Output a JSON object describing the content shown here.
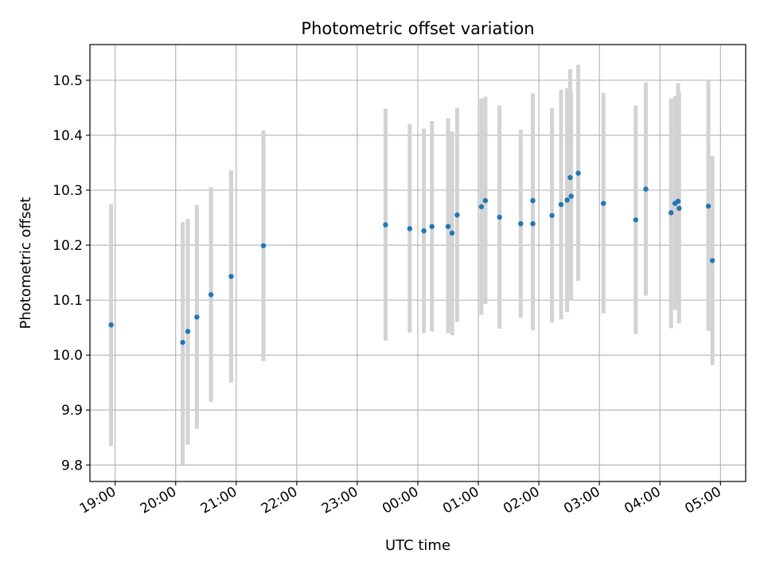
{
  "chart_data": {
    "type": "scatter",
    "title": "Photometric offset variation",
    "xlabel": "UTC time",
    "ylabel": "Photometric offset",
    "grid": true,
    "legend": "none",
    "x_axis": "time",
    "xlim": [
      "18:35",
      "05:25"
    ],
    "ylim": [
      9.77,
      10.565
    ],
    "x_ticks": [
      "19:00",
      "20:00",
      "21:00",
      "22:00",
      "23:00",
      "00:00",
      "01:00",
      "02:00",
      "03:00",
      "04:00",
      "05:00"
    ],
    "y_ticks": [
      9.8,
      9.9,
      10.0,
      10.1,
      10.2,
      10.3,
      10.4,
      10.5
    ],
    "colors": {
      "point": "#1f77b4",
      "errorbar": "#d3d3d3",
      "grid": "#b0b0b0"
    },
    "series": [
      {
        "points": [
          {
            "t": "18:56",
            "y": 10.055,
            "lo": 9.835,
            "hi": 10.275
          },
          {
            "t": "20:07",
            "y": 10.023,
            "lo": 9.8,
            "hi": 10.242
          },
          {
            "t": "20:12",
            "y": 10.043,
            "lo": 9.837,
            "hi": 10.248
          },
          {
            "t": "20:21",
            "y": 10.069,
            "lo": 9.866,
            "hi": 10.273
          },
          {
            "t": "20:35",
            "y": 10.11,
            "lo": 9.915,
            "hi": 10.305
          },
          {
            "t": "20:55",
            "y": 10.143,
            "lo": 9.95,
            "hi": 10.336
          },
          {
            "t": "21:27",
            "y": 10.199,
            "lo": 9.989,
            "hi": 10.409
          },
          {
            "t": "23:28",
            "y": 10.237,
            "lo": 10.026,
            "hi": 10.448
          },
          {
            "t": "23:52",
            "y": 10.23,
            "lo": 10.041,
            "hi": 10.421
          },
          {
            "t": "00:06",
            "y": 10.226,
            "lo": 10.04,
            "hi": 10.412
          },
          {
            "t": "00:14",
            "y": 10.234,
            "lo": 10.043,
            "hi": 10.426
          },
          {
            "t": "00:30",
            "y": 10.234,
            "lo": 10.04,
            "hi": 10.431
          },
          {
            "t": "00:34",
            "y": 10.222,
            "lo": 10.036,
            "hi": 10.407
          },
          {
            "t": "00:39",
            "y": 10.255,
            "lo": 10.06,
            "hi": 10.45
          },
          {
            "t": "01:03",
            "y": 10.27,
            "lo": 10.073,
            "hi": 10.467
          },
          {
            "t": "01:07",
            "y": 10.281,
            "lo": 10.093,
            "hi": 10.47
          },
          {
            "t": "01:21",
            "y": 10.251,
            "lo": 10.048,
            "hi": 10.454
          },
          {
            "t": "01:42",
            "y": 10.239,
            "lo": 10.068,
            "hi": 10.41
          },
          {
            "t": "01:54",
            "y": 10.239,
            "lo": 10.045,
            "hi": 10.476
          },
          {
            "t": "01:54",
            "y": 10.281,
            "lo": 10.085,
            "hi": 10.43
          },
          {
            "t": "02:13",
            "y": 10.254,
            "lo": 10.059,
            "hi": 10.449
          },
          {
            "t": "02:22",
            "y": 10.274,
            "lo": 10.065,
            "hi": 10.483
          },
          {
            "t": "02:28",
            "y": 10.282,
            "lo": 10.078,
            "hi": 10.486
          },
          {
            "t": "02:31",
            "y": 10.323,
            "lo": 10.126,
            "hi": 10.52
          },
          {
            "t": "02:32",
            "y": 10.289,
            "lo": 10.1,
            "hi": 10.478
          },
          {
            "t": "02:39",
            "y": 10.331,
            "lo": 10.135,
            "hi": 10.528
          },
          {
            "t": "03:04",
            "y": 10.276,
            "lo": 10.076,
            "hi": 10.477
          },
          {
            "t": "03:36",
            "y": 10.246,
            "lo": 10.038,
            "hi": 10.454
          },
          {
            "t": "03:46",
            "y": 10.302,
            "lo": 10.108,
            "hi": 10.496
          },
          {
            "t": "04:11",
            "y": 10.259,
            "lo": 10.049,
            "hi": 10.467
          },
          {
            "t": "04:15",
            "y": 10.276,
            "lo": 10.082,
            "hi": 10.471
          },
          {
            "t": "04:18",
            "y": 10.28,
            "lo": 10.085,
            "hi": 10.495
          },
          {
            "t": "04:19",
            "y": 10.267,
            "lo": 10.058,
            "hi": 10.478
          },
          {
            "t": "04:48",
            "y": 10.271,
            "lo": 10.044,
            "hi": 10.5
          },
          {
            "t": "04:52",
            "y": 10.172,
            "lo": 9.982,
            "hi": 10.362
          }
        ]
      }
    ]
  }
}
